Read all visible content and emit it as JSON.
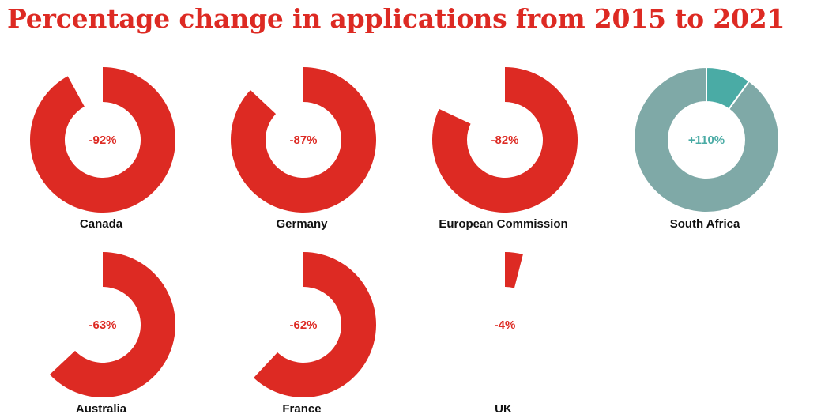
{
  "title": "Percentage change in applications from 2015 to 2021",
  "colors": {
    "decrease": "#dd2a23",
    "increase_base": "#7fa9a7",
    "increase_extra": "#4aaba5",
    "increase_text": "#4aaba5",
    "separator": "#ffffff"
  },
  "chart_data": {
    "type": "donut",
    "title": "Percentage change in applications from 2015 to 2021",
    "unit": "%",
    "items": [
      {
        "name": "Canada",
        "value": -92,
        "label": "-92%"
      },
      {
        "name": "Germany",
        "value": -87,
        "label": "-87%"
      },
      {
        "name": "European Commission",
        "value": -82,
        "label": "-82%"
      },
      {
        "name": "South Africa",
        "value": 110,
        "label": "+110%"
      },
      {
        "name": "Australia",
        "value": -63,
        "label": "-63%"
      },
      {
        "name": "France",
        "value": -62,
        "label": "-62%"
      },
      {
        "name": "UK",
        "value": -4,
        "label": "-4%"
      }
    ]
  }
}
